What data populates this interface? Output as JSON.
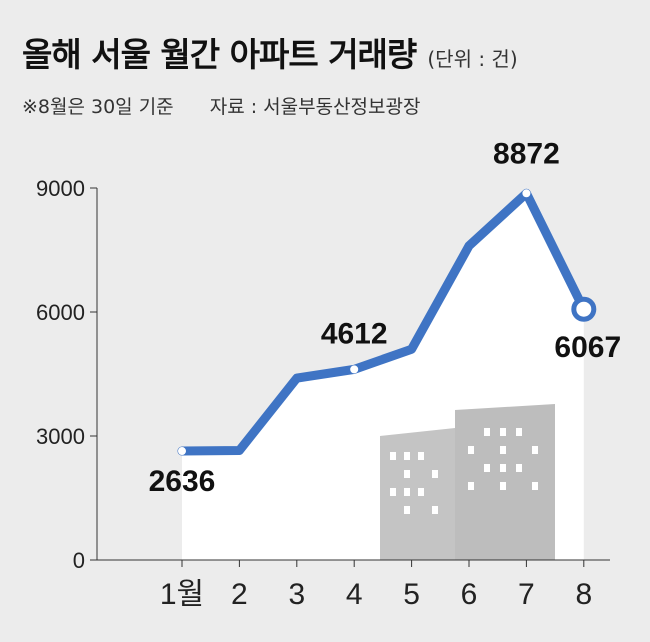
{
  "title": "올해 서울 월간 아파트 거래량",
  "unit": "(단위 : 건)",
  "note": "※8월은 30일 기준",
  "source": "자료 : 서울부동산정보광장",
  "colors": {
    "background": "#ececec",
    "line": "#3f74c4",
    "area": "#ffffff",
    "buildings": "#c4c4c4",
    "axis": "#333333"
  },
  "chart_data": {
    "type": "line",
    "categories": [
      "1월",
      "2",
      "3",
      "4",
      "5",
      "6",
      "7",
      "8"
    ],
    "values": [
      2636,
      2650,
      4400,
      4612,
      5100,
      7600,
      8872,
      6067
    ],
    "labeled": {
      "1월": 2636,
      "4": 4612,
      "7": 8872,
      "8": 6067
    },
    "ylim": [
      0,
      9000
    ],
    "yticks": [
      0,
      3000,
      6000,
      9000
    ],
    "title": "올해 서울 월간 아파트 거래량",
    "xlabel": "",
    "ylabel": "",
    "grid": false
  }
}
